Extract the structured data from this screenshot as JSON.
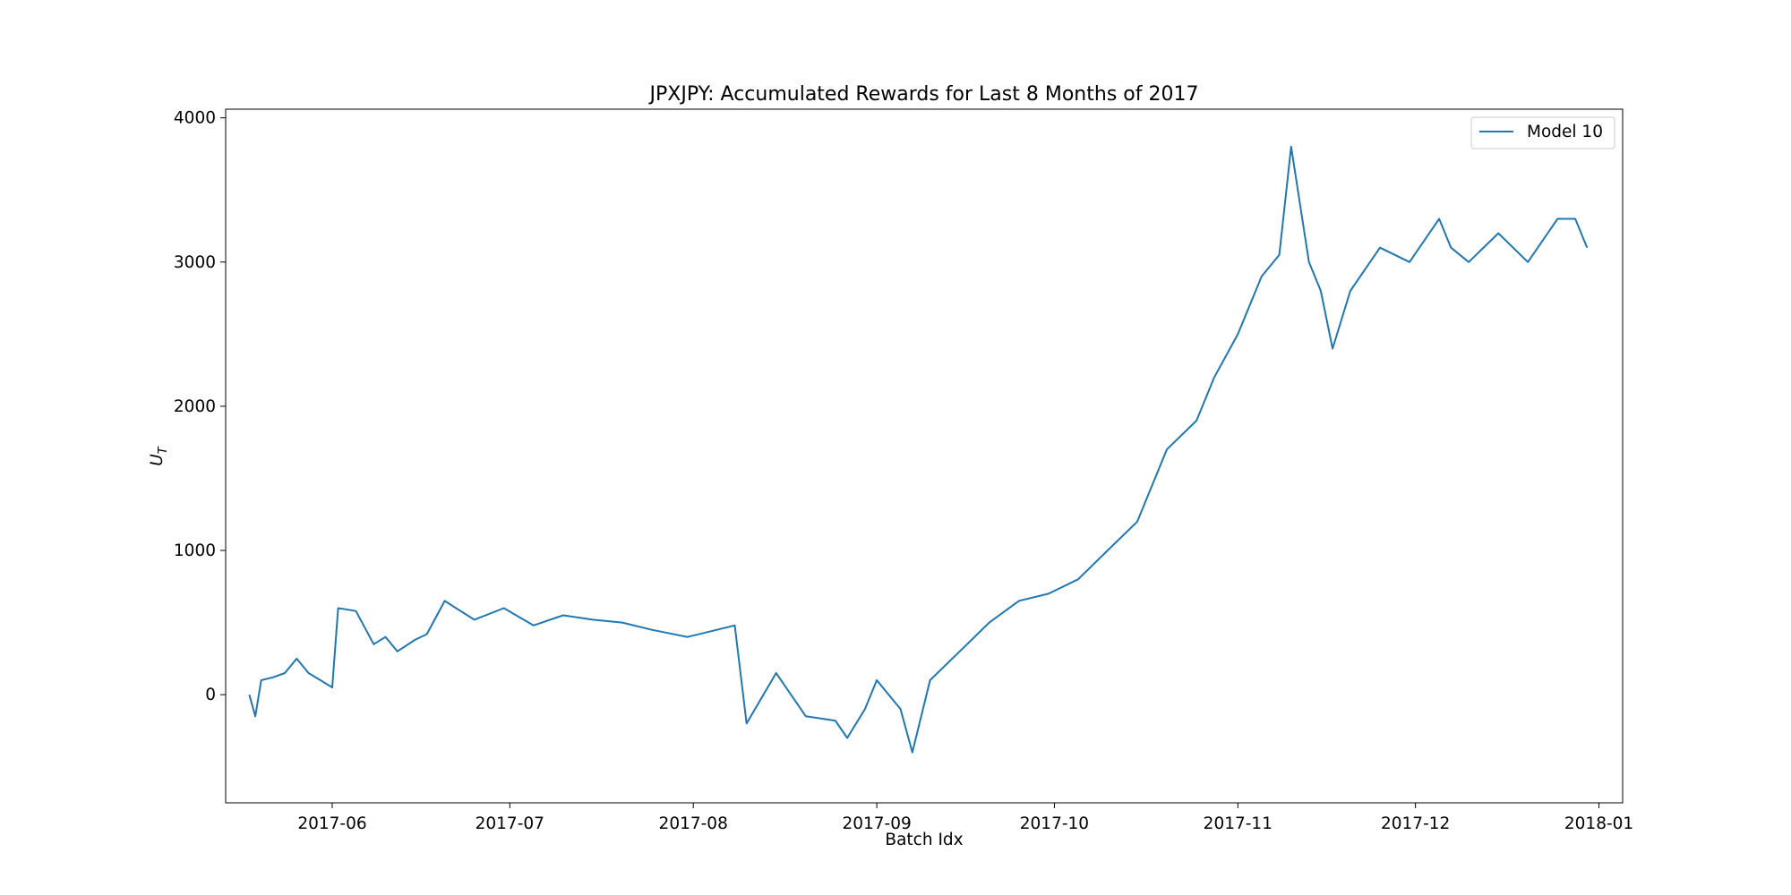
{
  "chart_data": {
    "type": "line",
    "title": "JPXJPY: Accumulated Rewards for Last 8 Months of 2017",
    "xlabel": "Batch Idx",
    "ylabel_base": "U",
    "ylabel_sub": "T",
    "x_ticks": [
      "2017-06",
      "2017-07",
      "2017-08",
      "2017-09",
      "2017-10",
      "2017-11",
      "2017-12",
      "2018-01"
    ],
    "y_ticks": [
      0,
      1000,
      2000,
      3000,
      4000
    ],
    "y_tick_labels": [
      "0",
      "1000",
      "2000",
      "3000",
      "4000"
    ],
    "xlim": [
      "2017-05-14",
      "2018-01-05"
    ],
    "ylim": [
      -750,
      4060
    ],
    "grid": false,
    "legend": {
      "position": "top-right",
      "entries": [
        "Model 10"
      ]
    },
    "series": [
      {
        "name": "Model 10",
        "color": "#1f77b4",
        "x": [
          "2017-05-18",
          "2017-05-19",
          "2017-05-20",
          "2017-05-22",
          "2017-05-24",
          "2017-05-26",
          "2017-05-28",
          "2017-05-30",
          "2017-06-01",
          "2017-06-02",
          "2017-06-05",
          "2017-06-08",
          "2017-06-10",
          "2017-06-12",
          "2017-06-15",
          "2017-06-17",
          "2017-06-20",
          "2017-06-25",
          "2017-06-30",
          "2017-07-05",
          "2017-07-10",
          "2017-07-15",
          "2017-07-20",
          "2017-07-25",
          "2017-07-31",
          "2017-08-05",
          "2017-08-08",
          "2017-08-10",
          "2017-08-15",
          "2017-08-20",
          "2017-08-25",
          "2017-08-27",
          "2017-08-30",
          "2017-09-01",
          "2017-09-05",
          "2017-09-07",
          "2017-09-10",
          "2017-09-15",
          "2017-09-20",
          "2017-09-25",
          "2017-09-30",
          "2017-10-05",
          "2017-10-10",
          "2017-10-15",
          "2017-10-20",
          "2017-10-25",
          "2017-10-28",
          "2017-11-01",
          "2017-11-05",
          "2017-11-08",
          "2017-11-10",
          "2017-11-13",
          "2017-11-15",
          "2017-11-17",
          "2017-11-20",
          "2017-11-25",
          "2017-11-30",
          "2017-12-05",
          "2017-12-07",
          "2017-12-10",
          "2017-12-15",
          "2017-12-20",
          "2017-12-25",
          "2017-12-28",
          "2017-12-30"
        ],
        "y": [
          0,
          -150,
          100,
          120,
          150,
          250,
          150,
          100,
          50,
          600,
          580,
          350,
          400,
          300,
          380,
          420,
          650,
          520,
          600,
          480,
          550,
          520,
          500,
          450,
          400,
          450,
          480,
          -200,
          150,
          -150,
          -180,
          -300,
          -100,
          100,
          -100,
          -400,
          100,
          300,
          500,
          650,
          700,
          800,
          1000,
          1200,
          1700,
          1900,
          2200,
          2500,
          2900,
          3050,
          3800,
          3000,
          2800,
          2400,
          2800,
          3100,
          3000,
          3300,
          3100,
          3000,
          3200,
          3000,
          3300,
          3300,
          3100
        ]
      }
    ]
  }
}
